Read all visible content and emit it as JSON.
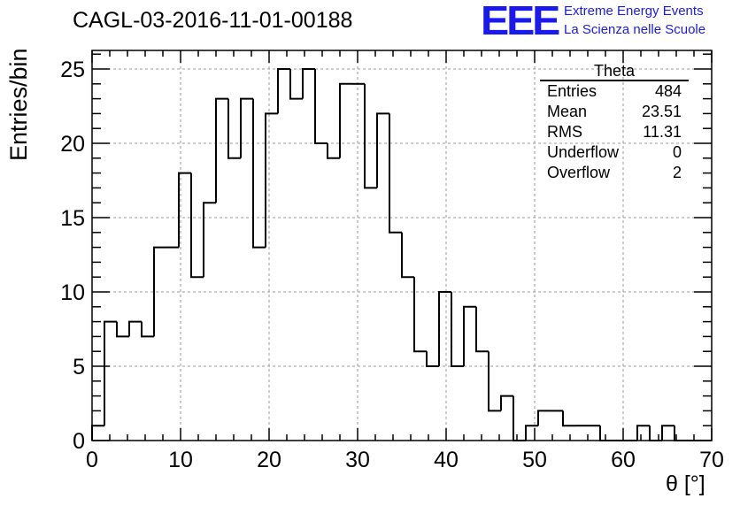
{
  "title": "CAGL-03-2016-11-01-00188",
  "logo": {
    "text": "EEE",
    "line1": "Extreme Energy Events",
    "line2": "La Scienza nelle Scuole",
    "color": "#1a1aee"
  },
  "stats_box": {
    "name": "Theta",
    "rows": [
      {
        "label": "Entries",
        "value": "484"
      },
      {
        "label": "Mean",
        "value": "23.51"
      },
      {
        "label": "RMS",
        "value": "11.31"
      },
      {
        "label": "Underflow",
        "value": "0"
      },
      {
        "label": "Overflow",
        "value": "2"
      }
    ]
  },
  "chart_data": {
    "type": "histogram",
    "title": "CAGL-03-2016-11-01-00188",
    "xlabel": "θ [°]",
    "ylabel": "Entries/bin",
    "xlim": [
      0,
      70
    ],
    "ylim": [
      0,
      26.25
    ],
    "bin_width": 1.4,
    "x_ticks": [
      "0",
      "10",
      "20",
      "30",
      "40",
      "50",
      "60",
      "70"
    ],
    "y_ticks": [
      "0",
      "5",
      "10",
      "15",
      "20",
      "25"
    ],
    "grid": true,
    "values": [
      1,
      8,
      7,
      8,
      7,
      13,
      13,
      18,
      11,
      16,
      23,
      19,
      23,
      13,
      22,
      25,
      23,
      25,
      20,
      19,
      24,
      24,
      17,
      22,
      14,
      11,
      6,
      5,
      10,
      5,
      9,
      6,
      2,
      3,
      0,
      1,
      2,
      2,
      1,
      1,
      1,
      0,
      0,
      0,
      1,
      0,
      1,
      0,
      0,
      0
    ]
  }
}
